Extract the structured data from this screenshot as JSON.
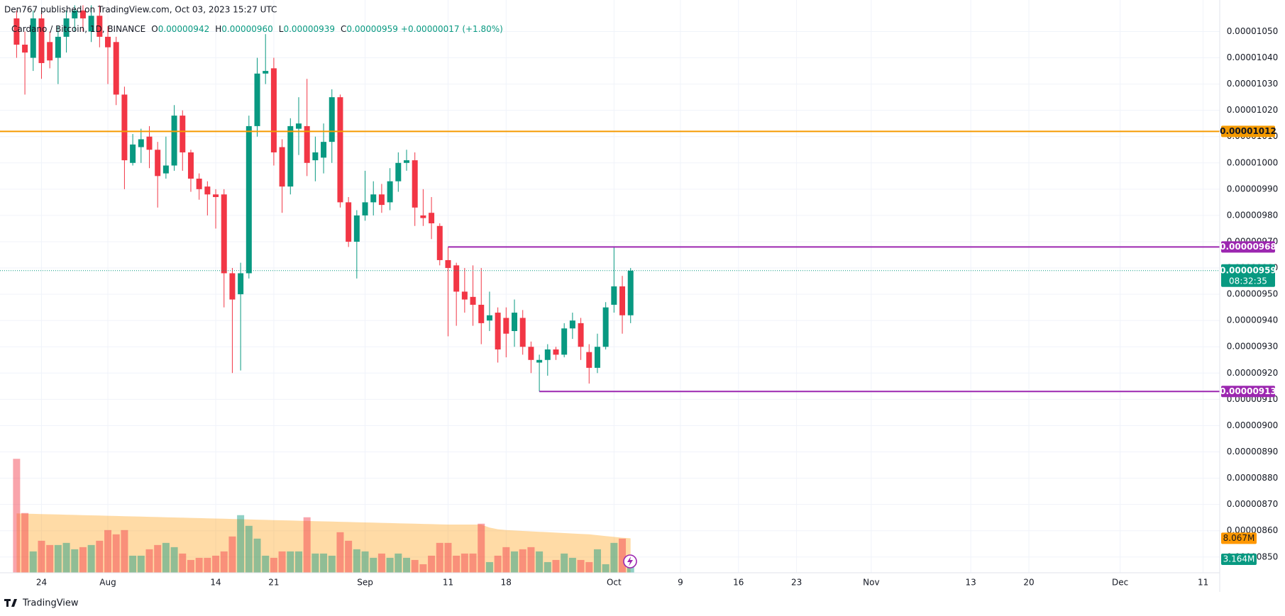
{
  "header": "Den767 published on TradingView.com, Oct 03, 2023 15:27 UTC",
  "footer": "TradingView",
  "chart_data": {
    "type": "candlestick",
    "legend_text": {
      "symbol": "Cardano / Bitcoin, 1D, BINANCE",
      "items": [
        {
          "label": "O",
          "value": "0.00000942"
        },
        {
          "label": "H",
          "value": "0.00000960"
        },
        {
          "label": "L",
          "value": "0.00000939"
        },
        {
          "label": "C",
          "value": "0.00000959"
        }
      ],
      "change": "+0.00000017 (+1.80%)"
    },
    "up_color": "#089981",
    "down_color": "#f23645",
    "xlim": [
      "2023-07-19",
      "2023-12-13"
    ],
    "ylim": [
      8.44e-06,
      1.062e-05
    ],
    "grid": true,
    "xticks": [
      {
        "value": "2023-07-24",
        "label": "24"
      },
      {
        "value": "2023-08-01",
        "label": "Aug"
      },
      {
        "value": "2023-08-14",
        "label": "14"
      },
      {
        "value": "2023-08-21",
        "label": "21"
      },
      {
        "value": "2023-09-01",
        "label": "Sep"
      },
      {
        "value": "2023-09-11",
        "label": "11"
      },
      {
        "value": "2023-09-18",
        "label": "18"
      },
      {
        "value": "2023-10-01",
        "label": "Oct"
      },
      {
        "value": "2023-10-09",
        "label": "9"
      },
      {
        "value": "2023-10-16",
        "label": "16"
      },
      {
        "value": "2023-10-23",
        "label": "23"
      },
      {
        "value": "2023-11-01",
        "label": "Nov"
      },
      {
        "value": "2023-11-13",
        "label": "13"
      },
      {
        "value": "2023-11-20",
        "label": "20"
      },
      {
        "value": "2023-12-01",
        "label": "Dec"
      },
      {
        "value": "2023-12-11",
        "label": "11"
      }
    ],
    "yticks": [
      {
        "value": 1.05e-05,
        "label": "0.00001050"
      },
      {
        "value": 1.04e-05,
        "label": "0.00001040"
      },
      {
        "value": 1.03e-05,
        "label": "0.00001030"
      },
      {
        "value": 1.02e-05,
        "label": "0.00001020"
      },
      {
        "value": 1.01e-05,
        "label": "0.00001010"
      },
      {
        "value": 1e-05,
        "label": "0.00001000"
      },
      {
        "value": 9.9e-06,
        "label": "0.00000990"
      },
      {
        "value": 9.8e-06,
        "label": "0.00000980"
      },
      {
        "value": 9.7e-06,
        "label": "0.00000970"
      },
      {
        "value": 9.6e-06,
        "label": "0.00000960"
      },
      {
        "value": 9.5e-06,
        "label": "0.00000950"
      },
      {
        "value": 9.4e-06,
        "label": "0.00000940"
      },
      {
        "value": 9.3e-06,
        "label": "0.00000930"
      },
      {
        "value": 9.2e-06,
        "label": "0.00000920"
      },
      {
        "value": 9.1e-06,
        "label": "0.00000910"
      },
      {
        "value": 9e-06,
        "label": "0.00000900"
      },
      {
        "value": 8.9e-06,
        "label": "0.00000890"
      },
      {
        "value": 8.8e-06,
        "label": "0.00000880"
      },
      {
        "value": 8.7e-06,
        "label": "0.00000870"
      },
      {
        "value": 8.6e-06,
        "label": "0.00000860"
      },
      {
        "value": 8.5e-06,
        "label": "0.00000850"
      }
    ],
    "candles": {
      "x": [
        "2023-07-21",
        "2023-07-22",
        "2023-07-23",
        "2023-07-24",
        "2023-07-25",
        "2023-07-26",
        "2023-07-27",
        "2023-07-28",
        "2023-07-29",
        "2023-07-30",
        "2023-07-31",
        "2023-08-01",
        "2023-08-02",
        "2023-08-03",
        "2023-08-04",
        "2023-08-05",
        "2023-08-06",
        "2023-08-07",
        "2023-08-08",
        "2023-08-09",
        "2023-08-10",
        "2023-08-11",
        "2023-08-12",
        "2023-08-13",
        "2023-08-14",
        "2023-08-15",
        "2023-08-16",
        "2023-08-17",
        "2023-08-18",
        "2023-08-19",
        "2023-08-20",
        "2023-08-21",
        "2023-08-22",
        "2023-08-23",
        "2023-08-24",
        "2023-08-25",
        "2023-08-26",
        "2023-08-27",
        "2023-08-28",
        "2023-08-29",
        "2023-08-30",
        "2023-08-31",
        "2023-09-01",
        "2023-09-02",
        "2023-09-03",
        "2023-09-04",
        "2023-09-05",
        "2023-09-06",
        "2023-09-07",
        "2023-09-08",
        "2023-09-09",
        "2023-09-10",
        "2023-09-11",
        "2023-09-12",
        "2023-09-13",
        "2023-09-14",
        "2023-09-15",
        "2023-09-16",
        "2023-09-17",
        "2023-09-18",
        "2023-09-19",
        "2023-09-20",
        "2023-09-21",
        "2023-09-22",
        "2023-09-23",
        "2023-09-24",
        "2023-09-25",
        "2023-09-26",
        "2023-09-27",
        "2023-09-28",
        "2023-09-29",
        "2023-09-30",
        "2023-10-01",
        "2023-10-02",
        "2023-10-03"
      ],
      "open": [
        1.055e-05,
        1.045e-05,
        1.04e-05,
        1.055e-05,
        1.046e-05,
        1.04e-05,
        1.048e-05,
        1.055e-05,
        1.058e-05,
        1.05e-05,
        1.056e-05,
        1.048e-05,
        1.046e-05,
        1.026e-05,
        1e-05,
        1.006e-05,
        1.01e-05,
        1.005e-05,
        9.96e-06,
        9.99e-06,
        1.018e-05,
        1.004e-05,
        9.94e-06,
        9.91e-06,
        9.88e-06,
        9.88e-06,
        9.58e-06,
        9.5e-06,
        9.58e-06,
        1.014e-05,
        1.034e-05,
        1.036e-05,
        1.006e-05,
        9.91e-06,
        1.013e-05,
        1.014e-05,
        1.001e-05,
        1.002e-05,
        1.008e-05,
        1.025e-05,
        9.85e-06,
        9.7e-06,
        9.8e-06,
        9.85e-06,
        9.88e-06,
        9.85e-06,
        9.93e-06,
        1e-05,
        1.001e-05,
        9.8e-06,
        9.81e-06,
        9.76e-06,
        9.63e-06,
        9.61e-06,
        9.51e-06,
        9.49e-06,
        9.46e-06,
        9.4e-06,
        9.43e-06,
        9.41e-06,
        9.36e-06,
        9.41e-06,
        9.3e-06,
        9.24e-06,
        9.25e-06,
        9.29e-06,
        9.27e-06,
        9.37e-06,
        9.39e-06,
        9.28e-06,
        9.22e-06,
        9.3e-06,
        9.46e-06,
        9.53e-06,
        9.42e-06
      ],
      "high": [
        1.058e-05,
        1.05e-05,
        1.058e-05,
        1.058e-05,
        1.05e-05,
        1.052e-05,
        1.058e-05,
        1.06e-05,
        1.06e-05,
        1.06e-05,
        1.06e-05,
        1.052e-05,
        1.048e-05,
        1.029e-05,
        1.011e-05,
        1.013e-05,
        1.014e-05,
        1.008e-05,
        1.01e-05,
        1.022e-05,
        1.02e-05,
        1.005e-05,
        9.96e-06,
        9.93e-06,
        9.9e-06,
        9.9e-06,
        9.6e-06,
        9.62e-06,
        1.018e-05,
        1.04e-05,
        1.049e-05,
        1.04e-05,
        1.009e-05,
        1.017e-05,
        1.025e-05,
        1.032e-05,
        1.01e-05,
        1.015e-05,
        1.028e-05,
        1.026e-05,
        9.87e-06,
        9.82e-06,
        9.97e-06,
        9.93e-06,
        9.92e-06,
        9.98e-06,
        1.004e-05,
        1.005e-05,
        1.004e-05,
        9.9e-06,
        9.87e-06,
        9.77e-06,
        9.68e-06,
        9.62e-06,
        9.6e-06,
        9.61e-06,
        9.6e-06,
        9.51e-06,
        9.45e-06,
        9.45e-06,
        9.48e-06,
        9.44e-06,
        9.32e-06,
        9.27e-06,
        9.31e-06,
        9.3e-06,
        9.39e-06,
        9.43e-06,
        9.41e-06,
        9.31e-06,
        9.35e-06,
        9.47e-06,
        9.68e-06,
        9.57e-06,
        9.6e-06
      ],
      "low": [
        1.04e-05,
        1.026e-05,
        1.035e-05,
        1.032e-05,
        1.036e-05,
        1.03e-05,
        1.042e-05,
        1.05e-05,
        1.05e-05,
        1.046e-05,
        1.044e-05,
        1.03e-05,
        1.022e-05,
        9.9e-06,
        9.99e-06,
        1e-05,
        9.98e-06,
        9.83e-06,
        9.94e-06,
        9.97e-06,
        9.97e-06,
        9.89e-06,
        9.86e-06,
        9.8e-06,
        9.75e-06,
        9.45e-06,
        9.2e-06,
        9.21e-06,
        9.56e-06,
        1.01e-05,
        1.03e-05,
        9.99e-06,
        9.81e-06,
        9.88e-06,
        1.003e-05,
        9.95e-06,
        9.93e-06,
        9.96e-06,
        1e-05,
        9.83e-06,
        9.68e-06,
        9.56e-06,
        9.78e-06,
        9.8e-06,
        9.81e-06,
        9.82e-06,
        9.89e-06,
        9.97e-06,
        9.76e-06,
        9.76e-06,
        9.71e-06,
        9.61e-06,
        9.34e-06,
        9.38e-06,
        9.43e-06,
        9.38e-06,
        9.31e-06,
        9.36e-06,
        9.24e-06,
        9.26e-06,
        9.3e-06,
        9.27e-06,
        9.2e-06,
        9.13e-06,
        9.19e-06,
        9.25e-06,
        9.26e-06,
        9.33e-06,
        9.25e-06,
        9.16e-06,
        9.2e-06,
        9.29e-06,
        9.43e-06,
        9.35e-06,
        9.39e-06
      ],
      "close": [
        1.045e-05,
        1.042e-05,
        1.055e-05,
        1.038e-05,
        1.039e-05,
        1.048e-05,
        1.055e-05,
        1.058e-05,
        1.055e-05,
        1.056e-05,
        1.048e-05,
        1.044e-05,
        1.026e-05,
        1.001e-05,
        1.007e-05,
        1.009e-05,
        1.005e-05,
        9.95e-06,
        9.99e-06,
        1.018e-05,
        1.004e-05,
        9.94e-06,
        9.9e-06,
        9.88e-06,
        9.87e-06,
        9.58e-06,
        9.48e-06,
        9.58e-06,
        1.014e-05,
        1.034e-05,
        1.035e-05,
        1.004e-05,
        9.91e-06,
        1.014e-05,
        1.015e-05,
        1e-05,
        1.004e-05,
        1.008e-05,
        1.025e-05,
        9.85e-06,
        9.7e-06,
        9.8e-06,
        9.85e-06,
        9.88e-06,
        9.84e-06,
        9.93e-06,
        1e-05,
        1.001e-05,
        9.83e-06,
        9.79e-06,
        9.77e-06,
        9.63e-06,
        9.6e-06,
        9.51e-06,
        9.48e-06,
        9.46e-06,
        9.39e-06,
        9.42e-06,
        9.29e-06,
        9.35e-06,
        9.43e-06,
        9.3e-06,
        9.25e-06,
        9.25e-06,
        9.29e-06,
        9.27e-06,
        9.37e-06,
        9.4e-06,
        9.3e-06,
        9.22e-06,
        9.3e-06,
        9.45e-06,
        9.53e-06,
        9.42e-06,
        9.59e-06
      ]
    },
    "volume": {
      "values": [
        26.7,
        14.0,
        5.0,
        7.5,
        6.5,
        6.5,
        7.0,
        5.5,
        6.0,
        6.5,
        7.5,
        10.0,
        9.0,
        10.0,
        4.0,
        4.0,
        5.5,
        6.5,
        7.0,
        6.0,
        4.5,
        3.0,
        3.5,
        3.5,
        4.0,
        5.0,
        8.5,
        13.5,
        11.0,
        8.0,
        4.0,
        3.5,
        5.0,
        5.0,
        5.0,
        13.0,
        4.5,
        4.5,
        4.0,
        9.5,
        7.5,
        5.5,
        5.0,
        3.5,
        4.5,
        3.5,
        4.5,
        3.5,
        3.0,
        2.0,
        4.0,
        7.0,
        7.0,
        4.0,
        4.5,
        4.5,
        11.5,
        2.5,
        4.0,
        6.0,
        5.0,
        5.5,
        6.0,
        5.0,
        2.5,
        3.0,
        4.5,
        3.5,
        3.0,
        2.5,
        5.5,
        2.0,
        7.0,
        8.0,
        3.164
      ],
      "last_label": "3.164M",
      "color": "#089981"
    },
    "volume_ma": {
      "values": [
        13.9,
        13.85,
        13.8,
        13.75,
        13.7,
        13.65,
        13.6,
        13.55,
        13.5,
        13.45,
        13.4,
        13.35,
        13.3,
        13.25,
        13.2,
        13.15,
        13.1,
        13.05,
        13.0,
        12.95,
        12.9,
        12.85,
        12.8,
        12.75,
        12.7,
        12.65,
        12.6,
        12.55,
        12.5,
        12.45,
        12.4,
        12.35,
        12.3,
        12.25,
        12.2,
        12.15,
        12.1,
        12.05,
        12.0,
        11.95,
        11.9,
        11.85,
        11.8,
        11.75,
        11.7,
        11.65,
        11.6,
        11.55,
        11.5,
        11.45,
        11.4,
        11.35,
        11.3,
        11.3,
        11.3,
        11.3,
        11.3,
        10.6,
        10.2,
        10.0,
        9.9,
        9.8,
        9.7,
        9.6,
        9.5,
        9.4,
        9.3,
        9.2,
        9.1,
        9.0,
        8.8,
        8.6,
        8.4,
        8.2,
        8.067
      ],
      "last_label": "8.067M",
      "color": "#ff9800"
    },
    "price_lines": [
      {
        "value": 1.012e-05,
        "label": "0.00001012",
        "color": "#f59a00"
      },
      {
        "value": 9.68e-06,
        "label": "0.00000968",
        "color": "#9c27b0",
        "start": "2023-09-11"
      },
      {
        "value": 9.13e-06,
        "label": "0.00000913",
        "color": "#9c27b0",
        "start": "2023-09-22"
      }
    ],
    "last_price": {
      "value": 9.59e-06,
      "label": "0.00000959",
      "countdown": "08:32:35",
      "color": "#089981"
    }
  }
}
